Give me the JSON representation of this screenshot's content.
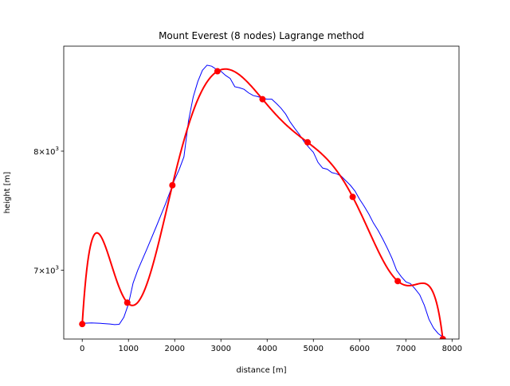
{
  "chart_data": {
    "type": "line",
    "title": "Mount Everest (8 nodes) Lagrange method",
    "xlabel": "distance [m]",
    "ylabel": "height [m]",
    "xlim": [
      -400,
      8150
    ],
    "ylim": [
      6480,
      9000
    ],
    "yscale": "log",
    "grid": false,
    "x_ticks": [
      0,
      1000,
      2000,
      3000,
      4000,
      5000,
      6000,
      7000,
      8000
    ],
    "x_tick_labels": [
      "0",
      "1000",
      "2000",
      "3000",
      "4000",
      "5000",
      "6000",
      "7000",
      "8000"
    ],
    "y_ticks": [
      {
        "value": 7000,
        "mantissa": "7",
        "base": "10",
        "exp": "3"
      },
      {
        "value": 8000,
        "mantissa": "8",
        "base": "10",
        "exp": "3"
      }
    ],
    "series": [
      {
        "color": "#0000ff",
        "x": [
          0,
          200,
          400,
          600,
          700,
          800,
          900,
          1000,
          1100,
          1200,
          1400,
          1600,
          1800,
          2000,
          2100,
          2200,
          2300,
          2400,
          2500,
          2600,
          2700,
          2800,
          2900,
          3000,
          3100,
          3200,
          3300,
          3400,
          3500,
          3600,
          3700,
          3800,
          3900,
          4000,
          4100,
          4200,
          4300,
          4400,
          4500,
          4600,
          4700,
          4800,
          4900,
          5000,
          5100,
          5200,
          5300,
          5400,
          5500,
          5600,
          5700,
          5800,
          5900,
          6000,
          6100,
          6200,
          6300,
          6400,
          6500,
          6600,
          6700,
          6800,
          6900,
          7000,
          7100,
          7200,
          7300,
          7400,
          7500,
          7600,
          7700,
          7800
        ],
        "y": [
          6595,
          6598,
          6595,
          6590,
          6586,
          6588,
          6640,
          6740,
          6900,
          7000,
          7170,
          7350,
          7540,
          7750,
          7840,
          7950,
          8280,
          8500,
          8650,
          8760,
          8810,
          8800,
          8770,
          8750,
          8710,
          8680,
          8600,
          8590,
          8575,
          8540,
          8515,
          8505,
          8490,
          8480,
          8480,
          8440,
          8395,
          8340,
          8265,
          8205,
          8150,
          8085,
          8035,
          7990,
          7900,
          7850,
          7840,
          7810,
          7800,
          7780,
          7740,
          7700,
          7650,
          7580,
          7520,
          7455,
          7380,
          7320,
          7250,
          7175,
          7095,
          7000,
          6950,
          6910,
          6895,
          6855,
          6810,
          6730,
          6625,
          6560,
          6520,
          6495
        ]
      },
      {
        "color": "#ff0000",
        "interpolation": "lagrange",
        "x": [
          0,
          975,
          1950,
          2925,
          3900,
          4875,
          5850,
          6825,
          7800
        ],
        "y": [
          6590,
          6750,
          7700,
          8750,
          8480,
          8080,
          7600,
          6915,
          6480
        ]
      }
    ]
  }
}
